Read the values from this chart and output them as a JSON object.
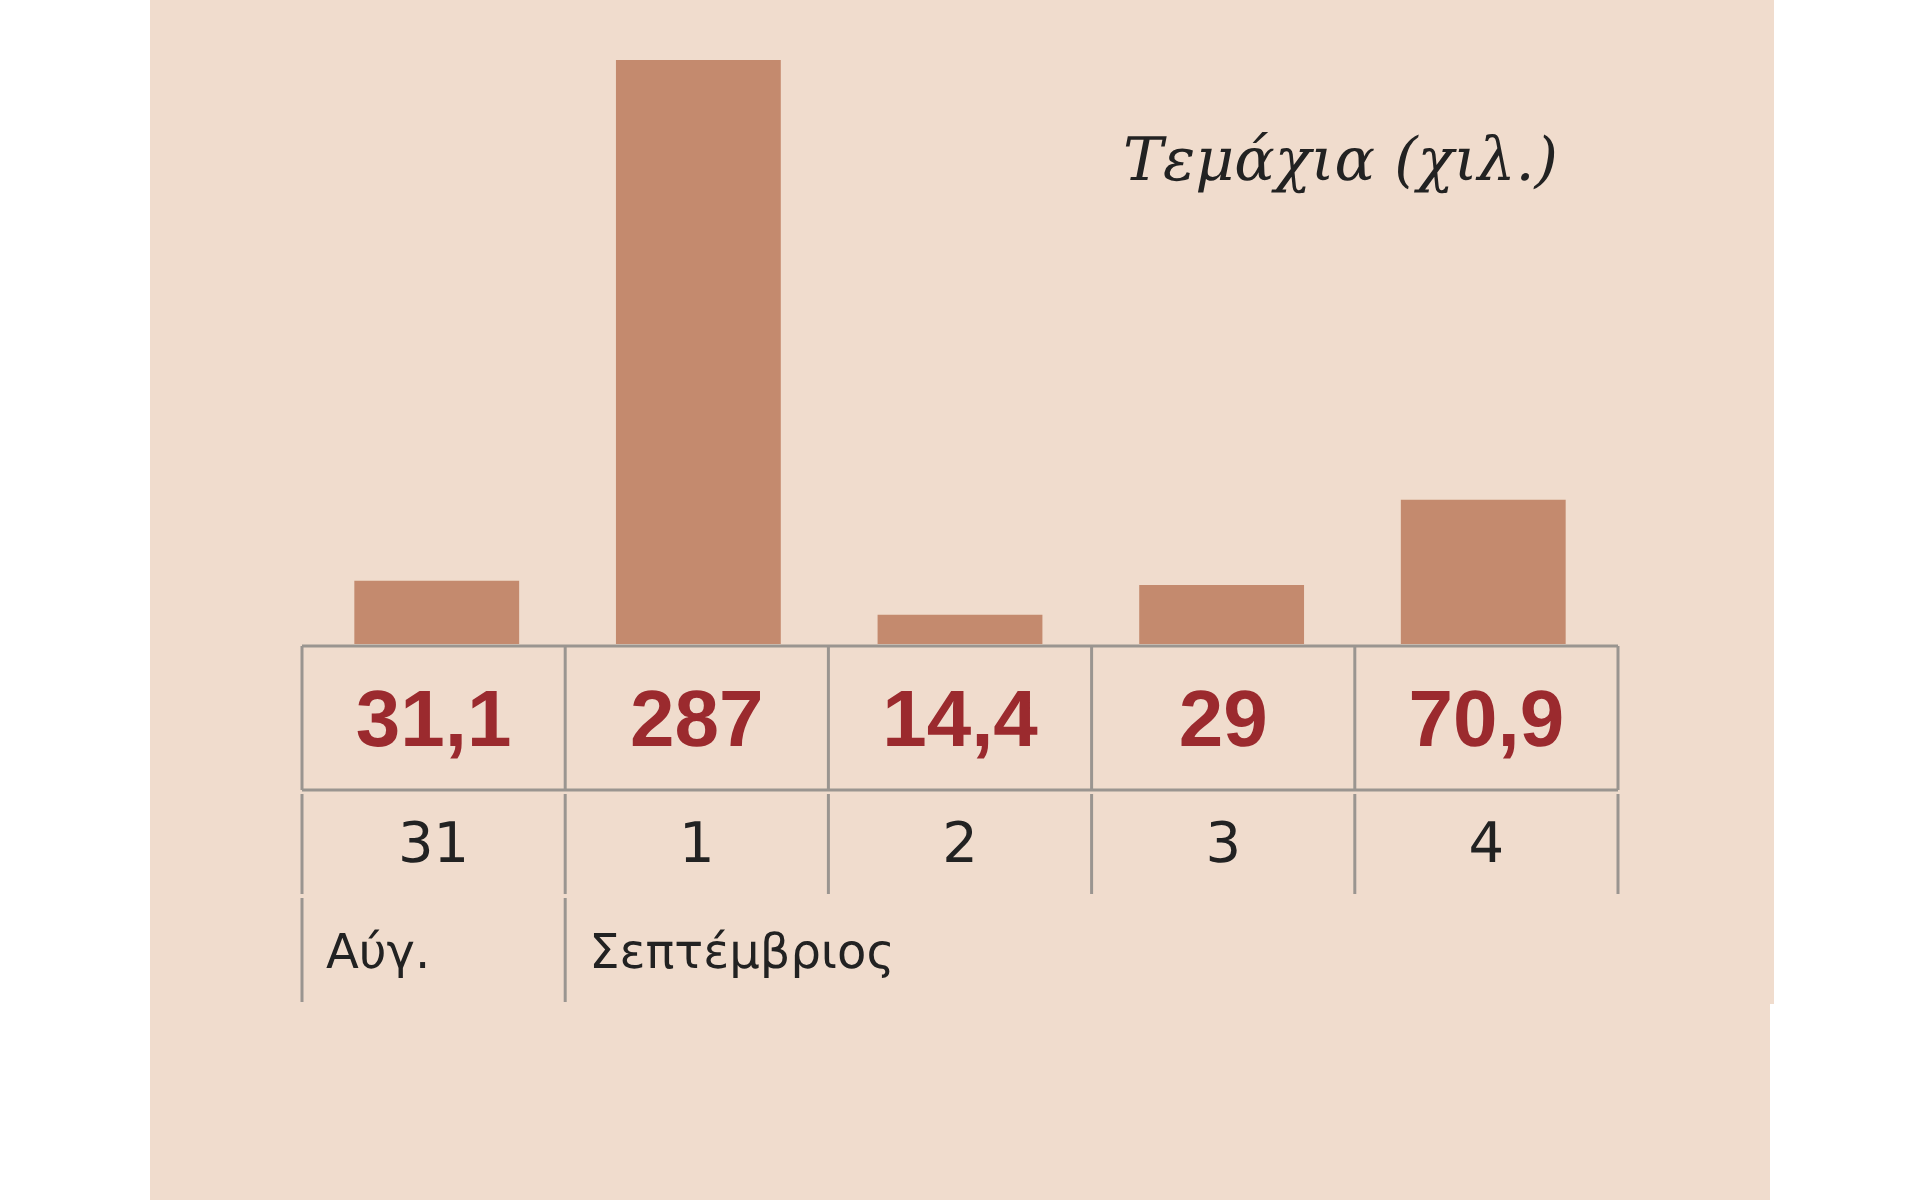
{
  "chart_data": {
    "type": "bar",
    "title": "Τεμάχια (χιλ.)",
    "categories": [
      "31",
      "1",
      "2",
      "3",
      "4"
    ],
    "values": [
      31.1,
      287,
      14.4,
      29,
      70.9
    ],
    "value_labels": [
      "31,1",
      "287",
      "14,4",
      "29",
      "70,9"
    ],
    "color": "#c48a6e",
    "annotations": [
      "Αύγ.",
      "Σεπτέμβριος"
    ]
  }
}
